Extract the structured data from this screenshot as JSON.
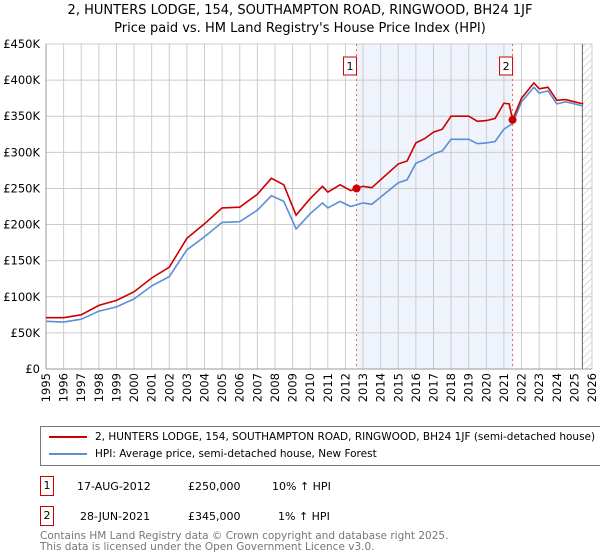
{
  "title": "2, HUNTERS LODGE, 154, SOUTHAMPTON ROAD, RINGWOOD, BH24 1JF",
  "subtitle": "Price paid vs. HM Land Registry's House Price Index (HPI)",
  "chart_data": {
    "type": "line",
    "title": "2, HUNTERS LODGE, 154, SOUTHAMPTON ROAD, RINGWOOD, BH24 1JF",
    "subtitle": "Price paid vs. HM Land Registry's House Price Index (HPI)",
    "xlim": [
      1995,
      2026
    ],
    "ylim": [
      0,
      450000
    ],
    "x_ticks": [
      "1995",
      "1996",
      "1997",
      "1998",
      "1999",
      "2000",
      "2001",
      "2002",
      "2003",
      "2004",
      "2005",
      "2006",
      "2007",
      "2008",
      "2009",
      "2010",
      "2011",
      "2012",
      "2013",
      "2014",
      "2015",
      "2016",
      "2017",
      "2018",
      "2019",
      "2020",
      "2021",
      "2022",
      "2023",
      "2024",
      "2025",
      "2026"
    ],
    "y_ticks": [
      {
        "v": 0,
        "label": "£0"
      },
      {
        "v": 50000,
        "label": "£50K"
      },
      {
        "v": 100000,
        "label": "£100K"
      },
      {
        "v": 150000,
        "label": "£150K"
      },
      {
        "v": 200000,
        "label": "£200K"
      },
      {
        "v": 250000,
        "label": "£250K"
      },
      {
        "v": 300000,
        "label": "£300K"
      },
      {
        "v": 350000,
        "label": "£350K"
      },
      {
        "v": 400000,
        "label": "£400K"
      },
      {
        "v": 450000,
        "label": "£450K"
      }
    ],
    "grid": true,
    "shaded_range": [
      2012.63,
      2021.49
    ],
    "forecast_start": 2025.45,
    "series": [
      {
        "name": "2, HUNTERS LODGE, 154, SOUTHAMPTON ROAD, RINGWOOD, BH24 1JF (semi-detached house)",
        "color": "#cc0000",
        "x": [
          1995,
          1996,
          1997,
          1998,
          1999,
          2000,
          2001,
          2002,
          2003,
          2004,
          2005,
          2006,
          2007,
          2007.8,
          2008.5,
          2009.2,
          2010,
          2010.7,
          2011,
          2011.7,
          2012.3,
          2012.63,
          2013,
          2013.5,
          2014,
          2015,
          2015.5,
          2016,
          2016.5,
          2017,
          2017.5,
          2018,
          2019,
          2019.5,
          2020,
          2020.5,
          2021,
          2021.3,
          2021.49,
          2022,
          2022.7,
          2023,
          2023.5,
          2024,
          2024.5,
          2025,
          2025.5
        ],
        "y": [
          71000,
          71000,
          75000,
          88000,
          95000,
          107000,
          126000,
          141000,
          181000,
          201000,
          223000,
          224000,
          242000,
          264000,
          255000,
          213000,
          236000,
          253000,
          245000,
          255000,
          247000,
          250000,
          253000,
          251000,
          262000,
          284000,
          288000,
          313000,
          319000,
          328000,
          332000,
          350000,
          350000,
          343000,
          344000,
          347000,
          368000,
          367000,
          345000,
          375000,
          396000,
          388000,
          390000,
          372000,
          373000,
          370000,
          367000
        ]
      },
      {
        "name": "HPI: Average price, semi-detached house, New Forest",
        "color": "#5b8fd4",
        "x": [
          1995,
          1996,
          1997,
          1998,
          1999,
          2000,
          2001,
          2002,
          2003,
          2004,
          2005,
          2006,
          2007,
          2007.8,
          2008.5,
          2009.2,
          2010,
          2010.7,
          2011,
          2011.7,
          2012.3,
          2013,
          2013.5,
          2014,
          2015,
          2015.5,
          2016,
          2016.5,
          2017,
          2017.5,
          2018,
          2019,
          2019.5,
          2020,
          2020.5,
          2021,
          2021.5,
          2022,
          2022.7,
          2023,
          2023.5,
          2024,
          2024.5,
          2025,
          2025.5
        ],
        "y": [
          66000,
          65000,
          69000,
          80000,
          86000,
          97000,
          115000,
          128000,
          165000,
          183000,
          203000,
          204000,
          220000,
          240000,
          232000,
          194000,
          215000,
          230000,
          223000,
          232000,
          225000,
          230000,
          228000,
          238000,
          258000,
          262000,
          285000,
          290000,
          298000,
          302000,
          318000,
          318000,
          312000,
          313000,
          315000,
          332000,
          340000,
          370000,
          390000,
          382000,
          385000,
          367000,
          370000,
          367000,
          364000
        ]
      }
    ],
    "annotations": [
      {
        "label": "1",
        "x": 2012.63,
        "y": 250000
      },
      {
        "label": "2",
        "x": 2021.49,
        "y": 345000
      }
    ]
  },
  "legend": {
    "red": "2, HUNTERS LODGE, 154, SOUTHAMPTON ROAD, RINGWOOD, BH24 1JF (semi-detached house)",
    "blue": "HPI: Average price, semi-detached house, New Forest"
  },
  "sales": [
    {
      "num": "1",
      "date": "17-AUG-2012",
      "price": "£250,000",
      "hpi": "10% ↑ HPI"
    },
    {
      "num": "2",
      "date": "28-JUN-2021",
      "price": "£345,000",
      "hpi": "1% ↑ HPI"
    }
  ],
  "footer": {
    "line1": "Contains HM Land Registry data © Crown copyright and database right 2025.",
    "line2": "This data is licensed under the Open Government Licence v3.0."
  }
}
